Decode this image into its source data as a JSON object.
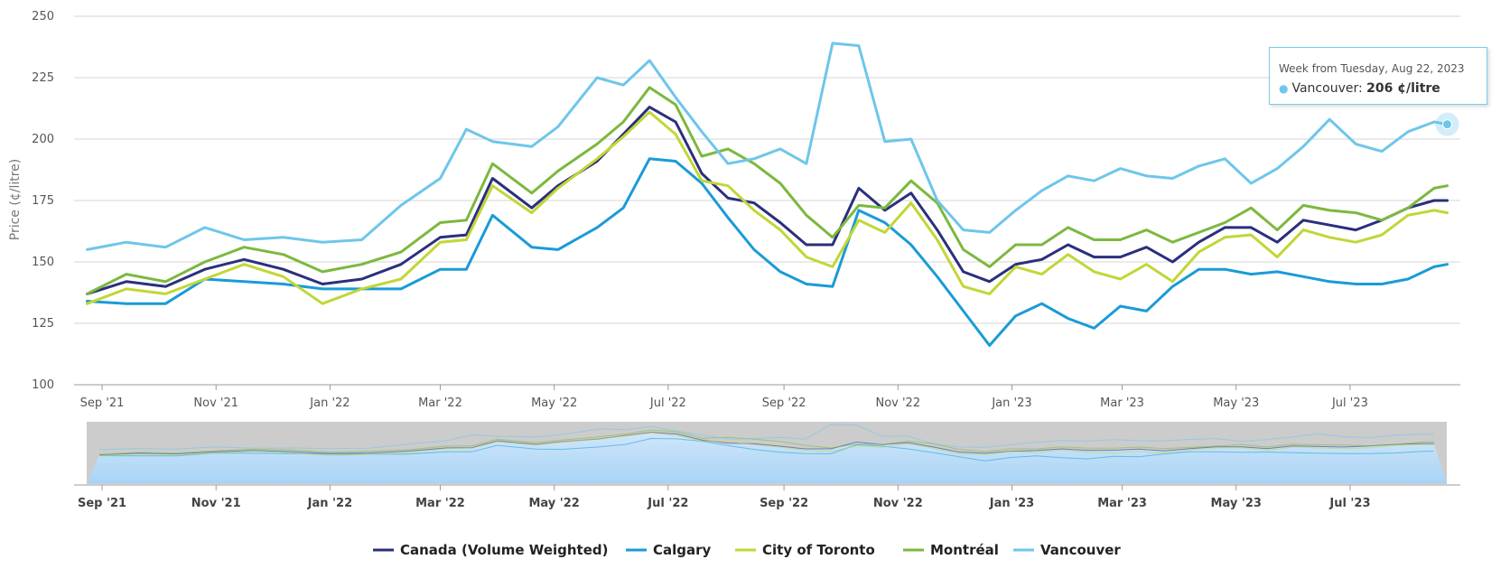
{
  "chart_data": {
    "type": "line",
    "title": "",
    "xlabel": "",
    "ylabel": "Price (¢/litre)",
    "ylim": [
      100,
      250
    ],
    "yticks": [
      100,
      125,
      150,
      175,
      200,
      225,
      250
    ],
    "x_tick_labels": [
      "Sep '21",
      "Nov '21",
      "Jan '22",
      "Mar '22",
      "May '22",
      "Jul '22",
      "Sep '22",
      "Nov '22",
      "Jan '23",
      "Mar '23",
      "May '23",
      "Jul '23"
    ],
    "x_tick_dates": [
      "2021-09-01",
      "2021-11-01",
      "2022-01-01",
      "2022-03-01",
      "2022-05-01",
      "2022-07-01",
      "2022-09-01",
      "2022-11-01",
      "2023-01-01",
      "2023-03-01",
      "2023-05-01",
      "2023-07-01"
    ],
    "grid": true,
    "legend_position": "bottom",
    "series": [
      {
        "name": "Canada (Volume Weighted)",
        "color": "#2a2f7d",
        "x": [
          "2021-08-24",
          "2021-09-14",
          "2021-10-05",
          "2021-10-26",
          "2021-11-16",
          "2021-12-07",
          "2021-12-28",
          "2022-01-18",
          "2022-02-08",
          "2022-03-01",
          "2022-03-15",
          "2022-03-29",
          "2022-04-19",
          "2022-05-03",
          "2022-05-24",
          "2022-06-07",
          "2022-06-21",
          "2022-07-05",
          "2022-07-19",
          "2022-08-02",
          "2022-08-16",
          "2022-08-30",
          "2022-09-13",
          "2022-09-27",
          "2022-10-11",
          "2022-10-25",
          "2022-11-08",
          "2022-11-22",
          "2022-12-06",
          "2022-12-20",
          "2023-01-03",
          "2023-01-17",
          "2023-01-31",
          "2023-02-14",
          "2023-02-28",
          "2023-03-14",
          "2023-03-28",
          "2023-04-11",
          "2023-04-25",
          "2023-05-09",
          "2023-05-23",
          "2023-06-06",
          "2023-06-20",
          "2023-07-04",
          "2023-07-18",
          "2023-08-01",
          "2023-08-15",
          "2023-08-22"
        ],
        "values": [
          137,
          142,
          140,
          147,
          151,
          147,
          141,
          143,
          149,
          160,
          161,
          184,
          172,
          181,
          191,
          202,
          213,
          207,
          186,
          176,
          174,
          166,
          157,
          157,
          180,
          171,
          178,
          163,
          146,
          142,
          149,
          151,
          157,
          152,
          152,
          156,
          150,
          158,
          164,
          164,
          158,
          167,
          165,
          163,
          167,
          172,
          175,
          175
        ]
      },
      {
        "name": "Calgary",
        "color": "#1a9bd7",
        "x": [
          "2021-08-24",
          "2021-09-14",
          "2021-10-05",
          "2021-10-26",
          "2021-11-16",
          "2021-12-07",
          "2021-12-28",
          "2022-01-18",
          "2022-02-08",
          "2022-03-01",
          "2022-03-15",
          "2022-03-29",
          "2022-04-19",
          "2022-05-03",
          "2022-05-24",
          "2022-06-07",
          "2022-06-21",
          "2022-07-05",
          "2022-07-19",
          "2022-08-02",
          "2022-08-16",
          "2022-08-30",
          "2022-09-13",
          "2022-09-27",
          "2022-10-11",
          "2022-10-25",
          "2022-11-08",
          "2022-11-22",
          "2022-12-06",
          "2022-12-20",
          "2023-01-03",
          "2023-01-17",
          "2023-01-31",
          "2023-02-14",
          "2023-02-28",
          "2023-03-14",
          "2023-03-28",
          "2023-04-11",
          "2023-04-25",
          "2023-05-09",
          "2023-05-23",
          "2023-06-06",
          "2023-06-20",
          "2023-07-04",
          "2023-07-18",
          "2023-08-01",
          "2023-08-15",
          "2023-08-22"
        ],
        "values": [
          134,
          133,
          133,
          143,
          142,
          141,
          139,
          139,
          139,
          147,
          147,
          169,
          156,
          155,
          164,
          172,
          192,
          191,
          182,
          168,
          155,
          146,
          141,
          140,
          171,
          166,
          157,
          144,
          130,
          116,
          128,
          133,
          127,
          123,
          132,
          130,
          140,
          147,
          147,
          145,
          146,
          144,
          142,
          141,
          141,
          143,
          148,
          149
        ]
      },
      {
        "name": "City of Toronto",
        "color": "#c2d636",
        "x": [
          "2021-08-24",
          "2021-09-14",
          "2021-10-05",
          "2021-10-26",
          "2021-11-16",
          "2021-12-07",
          "2021-12-28",
          "2022-01-18",
          "2022-02-08",
          "2022-03-01",
          "2022-03-15",
          "2022-03-29",
          "2022-04-19",
          "2022-05-03",
          "2022-05-24",
          "2022-06-07",
          "2022-06-21",
          "2022-07-05",
          "2022-07-19",
          "2022-08-02",
          "2022-08-16",
          "2022-08-30",
          "2022-09-13",
          "2022-09-27",
          "2022-10-11",
          "2022-10-25",
          "2022-11-08",
          "2022-11-22",
          "2022-12-06",
          "2022-12-20",
          "2023-01-03",
          "2023-01-17",
          "2023-01-31",
          "2023-02-14",
          "2023-02-28",
          "2023-03-14",
          "2023-03-28",
          "2023-04-11",
          "2023-04-25",
          "2023-05-09",
          "2023-05-23",
          "2023-06-06",
          "2023-06-20",
          "2023-07-04",
          "2023-07-18",
          "2023-08-01",
          "2023-08-15",
          "2023-08-22"
        ],
        "values": [
          133,
          139,
          137,
          143,
          149,
          144,
          133,
          139,
          143,
          158,
          159,
          181,
          170,
          180,
          192,
          201,
          211,
          202,
          183,
          181,
          171,
          163,
          152,
          148,
          167,
          162,
          174,
          159,
          140,
          137,
          148,
          145,
          153,
          146,
          143,
          149,
          142,
          154,
          160,
          161,
          152,
          163,
          160,
          158,
          161,
          169,
          171,
          170
        ]
      },
      {
        "name": "Montréal",
        "color": "#7cb83e",
        "x": [
          "2021-08-24",
          "2021-09-14",
          "2021-10-05",
          "2021-10-26",
          "2021-11-16",
          "2021-12-07",
          "2021-12-28",
          "2022-01-18",
          "2022-02-08",
          "2022-03-01",
          "2022-03-15",
          "2022-03-29",
          "2022-04-19",
          "2022-05-03",
          "2022-05-24",
          "2022-06-07",
          "2022-06-21",
          "2022-07-05",
          "2022-07-19",
          "2022-08-02",
          "2022-08-16",
          "2022-08-30",
          "2022-09-13",
          "2022-09-27",
          "2022-10-11",
          "2022-10-25",
          "2022-11-08",
          "2022-11-22",
          "2022-12-06",
          "2022-12-20",
          "2023-01-03",
          "2023-01-17",
          "2023-01-31",
          "2023-02-14",
          "2023-02-28",
          "2023-03-14",
          "2023-03-28",
          "2023-04-11",
          "2023-04-25",
          "2023-05-09",
          "2023-05-23",
          "2023-06-06",
          "2023-06-20",
          "2023-07-04",
          "2023-07-18",
          "2023-08-01",
          "2023-08-15",
          "2023-08-22"
        ],
        "values": [
          137,
          145,
          142,
          150,
          156,
          153,
          146,
          149,
          154,
          166,
          167,
          190,
          178,
          187,
          198,
          207,
          221,
          214,
          193,
          196,
          190,
          182,
          169,
          160,
          173,
          172,
          183,
          174,
          155,
          148,
          157,
          157,
          164,
          159,
          159,
          163,
          158,
          162,
          166,
          172,
          163,
          173,
          171,
          170,
          167,
          172,
          180,
          181
        ]
      },
      {
        "name": "Vancouver",
        "color": "#6ec6ea",
        "x": [
          "2021-08-24",
          "2021-09-14",
          "2021-10-05",
          "2021-10-26",
          "2021-11-16",
          "2021-12-07",
          "2021-12-28",
          "2022-01-18",
          "2022-02-08",
          "2022-03-01",
          "2022-03-15",
          "2022-03-29",
          "2022-04-19",
          "2022-05-03",
          "2022-05-24",
          "2022-06-07",
          "2022-06-21",
          "2022-07-05",
          "2022-07-19",
          "2022-08-02",
          "2022-08-16",
          "2022-08-30",
          "2022-09-13",
          "2022-09-27",
          "2022-10-11",
          "2022-10-25",
          "2022-11-08",
          "2022-11-22",
          "2022-12-06",
          "2022-12-20",
          "2023-01-03",
          "2023-01-17",
          "2023-01-31",
          "2023-02-14",
          "2023-02-28",
          "2023-03-14",
          "2023-03-28",
          "2023-04-11",
          "2023-04-25",
          "2023-05-09",
          "2023-05-23",
          "2023-06-06",
          "2023-06-20",
          "2023-07-04",
          "2023-07-18",
          "2023-08-01",
          "2023-08-15",
          "2023-08-22"
        ],
        "values": [
          155,
          158,
          156,
          164,
          159,
          160,
          158,
          159,
          173,
          184,
          204,
          199,
          197,
          205,
          225,
          222,
          232,
          217,
          203,
          190,
          192,
          196,
          190,
          239,
          238,
          199,
          200,
          175,
          163,
          162,
          171,
          179,
          185,
          183,
          188,
          185,
          184,
          189,
          192,
          182,
          188,
          197,
          208,
          198,
          195,
          203,
          207,
          206
        ]
      }
    ]
  },
  "navigator": {
    "tick_labels": [
      "Sep '21",
      "Nov '21",
      "Jan '22",
      "Mar '22",
      "May '22",
      "Jul '22",
      "Sep '22",
      "Nov '22",
      "Jan '23",
      "Mar '23",
      "May '23",
      "Jul '23"
    ]
  },
  "tooltip": {
    "header": "Week from Tuesday, Aug 22, 2023",
    "series_name": "Vancouver",
    "value_text": "206 ¢/litre",
    "dot_glyph": "●"
  },
  "colors": {
    "grid": "#d6d6d6",
    "navigator_mask": "#cccccc",
    "navigator_fill": "#a9d4f5"
  }
}
